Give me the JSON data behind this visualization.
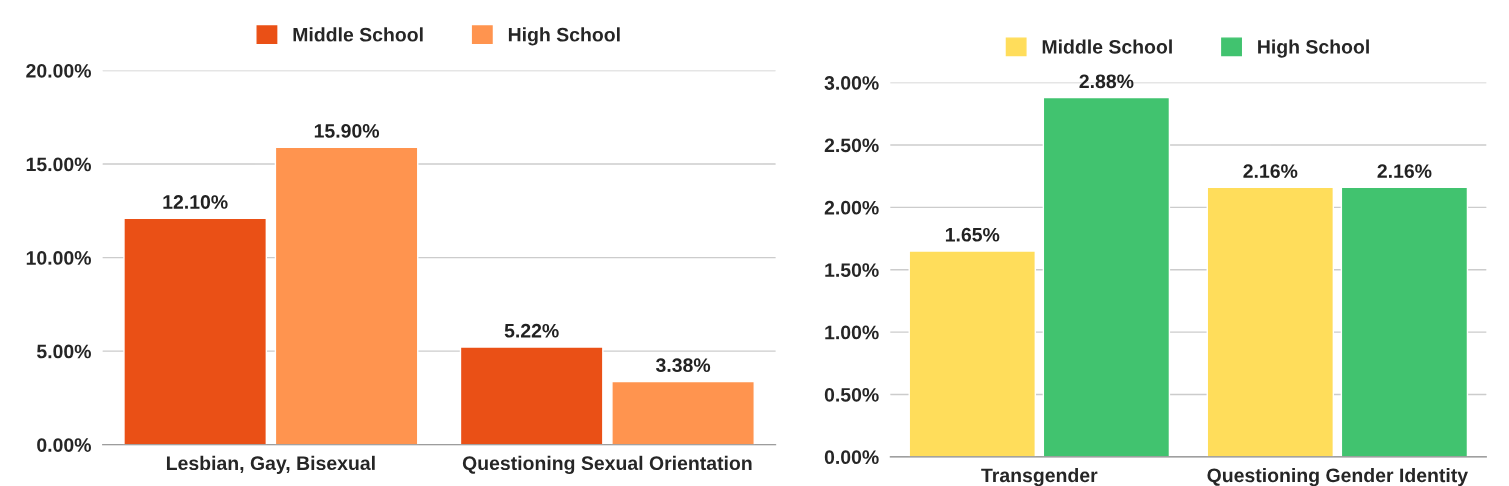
{
  "chart_data": [
    {
      "type": "bar",
      "categories": [
        "Lesbian, Gay, Bisexual",
        "Questioning Sexual Orientation"
      ],
      "series": [
        {
          "name": "Middle School",
          "color": "#ea5016",
          "values": [
            12.1,
            5.22
          ],
          "value_labels": [
            "12.10%",
            "5.22%"
          ]
        },
        {
          "name": "High School",
          "color": "#ff944f",
          "values": [
            15.9,
            3.38
          ],
          "value_labels": [
            "15.90%",
            "3.38%"
          ]
        }
      ],
      "ylim": [
        0,
        20
      ],
      "yticks": [
        {
          "value": 0,
          "label": "0.00%"
        },
        {
          "value": 5,
          "label": "5.00%"
        },
        {
          "value": 10,
          "label": "10.00%"
        },
        {
          "value": 15,
          "label": "15.00%"
        },
        {
          "value": 20,
          "label": "20.00%"
        }
      ],
      "grid": "y",
      "legend": "top"
    },
    {
      "type": "bar",
      "categories": [
        "Transgender",
        "Questioning Gender Identity"
      ],
      "series": [
        {
          "name": "Middle School",
          "color": "#ffdd5b",
          "values": [
            1.65,
            2.16
          ],
          "value_labels": [
            "1.65%",
            "2.16%"
          ]
        },
        {
          "name": "High School",
          "color": "#41c36f",
          "values": [
            2.88,
            2.16
          ],
          "value_labels": [
            "2.88%",
            "2.16%"
          ]
        }
      ],
      "ylim": [
        0,
        3
      ],
      "yticks": [
        {
          "value": 0,
          "label": "0.00%"
        },
        {
          "value": 0.5,
          "label": "0.50%"
        },
        {
          "value": 1,
          "label": "1.00%"
        },
        {
          "value": 1.5,
          "label": "1.50%"
        },
        {
          "value": 2,
          "label": "2.00%"
        },
        {
          "value": 2.5,
          "label": "2.50%"
        },
        {
          "value": 3,
          "label": "3.00%"
        }
      ],
      "grid": "y",
      "legend": "top"
    }
  ]
}
